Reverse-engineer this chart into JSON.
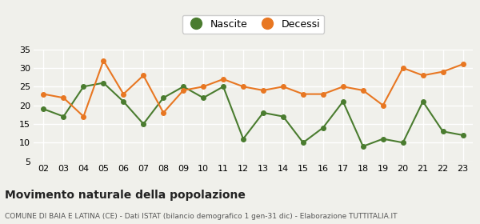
{
  "years": [
    "02",
    "03",
    "04",
    "05",
    "06",
    "07",
    "08",
    "09",
    "10",
    "11",
    "12",
    "13",
    "14",
    "15",
    "16",
    "17",
    "18",
    "19",
    "20",
    "21",
    "22",
    "23"
  ],
  "nascite": [
    19,
    17,
    25,
    26,
    21,
    15,
    22,
    25,
    22,
    25,
    11,
    18,
    17,
    10,
    14,
    21,
    9,
    11,
    10,
    21,
    13,
    12
  ],
  "decessi": [
    23,
    22,
    17,
    32,
    23,
    28,
    18,
    24,
    25,
    27,
    25,
    24,
    25,
    23,
    23,
    25,
    24,
    20,
    30,
    28,
    29,
    31
  ],
  "nascite_color": "#4a7c2f",
  "decessi_color": "#e87722",
  "title": "Movimento naturale della popolazione",
  "subtitle": "COMUNE DI BAIA E LATINA (CE) - Dati ISTAT (bilancio demografico 1 gen-31 dic) - Elaborazione TUTTITALIA.IT",
  "legend_nascite": "Nascite",
  "legend_decessi": "Decessi",
  "ylim": [
    5,
    35
  ],
  "yticks": [
    5,
    10,
    15,
    20,
    25,
    30,
    35
  ],
  "background_color": "#f0f0eb",
  "plot_bg_color": "#f0f0eb",
  "grid_color": "#ffffff",
  "marker_size": 4,
  "line_width": 1.5,
  "title_fontsize": 10,
  "subtitle_fontsize": 6.5,
  "tick_fontsize": 8
}
